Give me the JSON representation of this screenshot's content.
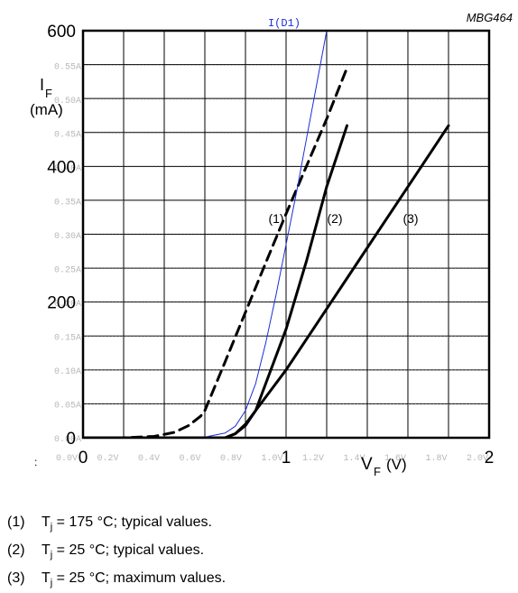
{
  "chart_data": {
    "type": "line",
    "id_label": "MBG464",
    "sim_trace_label": "I(D1)",
    "ylabel_main": "I",
    "ylabel_sub": "F",
    "ylabel_unit": "(mA)",
    "xlabel_main": "V",
    "xlabel_sub": "F",
    "xlabel_unit": "(V)",
    "xlim": [
      0,
      2
    ],
    "ylim": [
      0,
      600
    ],
    "x_ticks": [
      0,
      1,
      2
    ],
    "x_tick_labels": [
      "0",
      "1",
      "2"
    ],
    "y_ticks": [
      0,
      200,
      400,
      600
    ],
    "y_tick_labels": [
      "0",
      "200",
      "400",
      "600"
    ],
    "grid": true,
    "sim_x_tick_labels": [
      "0.0V",
      "0.2V",
      "0.4V",
      "0.6V",
      "0.8V",
      "1.0V",
      "1.2V",
      "1.4V",
      "1.6V",
      "1.8V",
      "2.0V"
    ],
    "sim_y_tick_labels": [
      "0.00A",
      "0.05A",
      "0.10A",
      "0.15A",
      "0.20A",
      "0.25A",
      "0.30A",
      "0.35A",
      "0.40A",
      "0.45A",
      "0.50A",
      "0.55A"
    ],
    "series": [
      {
        "name": "(1)",
        "style": "dashed",
        "color": "#000000",
        "x": [
          0.0,
          0.2,
          0.35,
          0.45,
          0.52,
          0.58,
          0.6,
          0.7,
          0.8,
          0.9,
          1.0,
          1.1,
          1.2,
          1.3
        ],
        "y": [
          0,
          0,
          2,
          8,
          18,
          32,
          40,
          112,
          185,
          258,
          330,
          400,
          470,
          545
        ]
      },
      {
        "name": "(2)",
        "style": "solid",
        "color": "#000000",
        "x": [
          0.0,
          0.5,
          0.7,
          0.75,
          0.8,
          0.85,
          0.9,
          1.0,
          1.1,
          1.2,
          1.3
        ],
        "y": [
          0,
          0,
          0,
          6,
          18,
          40,
          80,
          160,
          260,
          370,
          460
        ]
      },
      {
        "name": "(3)",
        "style": "solid",
        "color": "#000000",
        "x": [
          0.0,
          0.5,
          0.7,
          0.75,
          0.8,
          0.85,
          0.9,
          1.0,
          1.2,
          1.4,
          1.6,
          1.8
        ],
        "y": [
          0,
          0,
          0,
          6,
          20,
          40,
          60,
          100,
          190,
          280,
          370,
          460
        ]
      },
      {
        "name": "I(D1)",
        "style": "solid",
        "color": "#1a2fd6",
        "x": [
          0.0,
          0.5,
          0.6,
          0.7,
          0.75,
          0.8,
          0.85,
          0.9,
          0.95,
          1.0,
          1.05,
          1.1,
          1.15,
          1.2
        ],
        "y": [
          0,
          0,
          1,
          7,
          17,
          40,
          80,
          140,
          210,
          285,
          360,
          440,
          520,
          600
        ]
      }
    ]
  },
  "legend": [
    {
      "num": "(1)",
      "prefix": "T",
      "sub": "j",
      "text": " = 175 °C; typical values."
    },
    {
      "num": "(2)",
      "prefix": "T",
      "sub": "j",
      "text": " = 25 °C; typical values."
    },
    {
      "num": "(3)",
      "prefix": "T",
      "sub": "j",
      "text": " = 25 °C; maximum values."
    }
  ]
}
